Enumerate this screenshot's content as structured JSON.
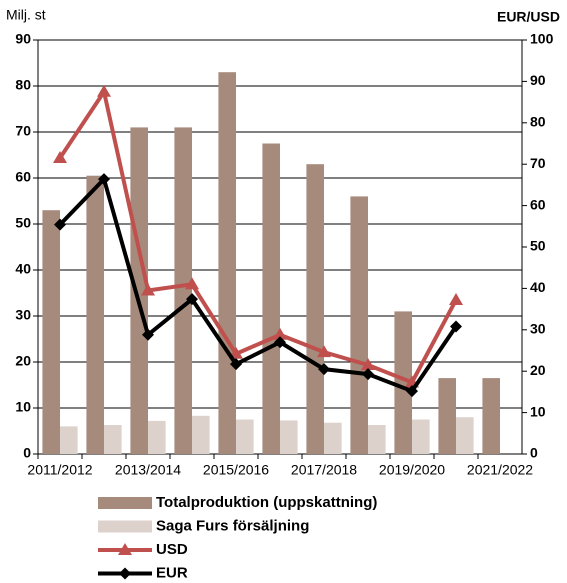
{
  "chart_data": {
    "type": "bar_line",
    "y_label": "Milj. st",
    "y2_label": "EUR/USD",
    "categories": [
      "2011/2012",
      null,
      "2013/2014",
      null,
      "2015/2016",
      null,
      "2017/2018",
      null,
      "2019/2020",
      null,
      "2021/2022"
    ],
    "series": [
      {
        "name": "Totalproduktion (uppskattning)",
        "kind": "bar",
        "color": "#a68b7d",
        "values": [
          53,
          60.5,
          71,
          71,
          83,
          67.5,
          63,
          56,
          31,
          16.5,
          16.5
        ]
      },
      {
        "name": "Saga Furs försäljning",
        "kind": "bar",
        "color": "#ddd1cc",
        "values": [
          6,
          6.3,
          7.2,
          8.3,
          7.5,
          7.3,
          6.8,
          6.3,
          7.5,
          8,
          null
        ]
      },
      {
        "name": "USD",
        "kind": "line",
        "axis": "y2",
        "marker": "triangle",
        "color": "#c0504d",
        "values": [
          71.5,
          87.5,
          39.5,
          41,
          24.2,
          28.8,
          24.6,
          21.5,
          17.3,
          37.2,
          null
        ]
      },
      {
        "name": "EUR",
        "kind": "line",
        "axis": "y2",
        "marker": "diamond",
        "color": "#000000",
        "values": [
          55.4,
          66.4,
          28.8,
          37.4,
          21.7,
          27,
          20.5,
          19.3,
          15.2,
          30.8,
          null
        ]
      }
    ],
    "ylim": [
      0,
      90
    ],
    "yticks": [
      0,
      10,
      20,
      30,
      40,
      50,
      60,
      70,
      80,
      90
    ],
    "y2lim": [
      0,
      100
    ],
    "y2ticks": [
      0,
      10,
      20,
      30,
      40,
      50,
      60,
      70,
      80,
      90,
      100
    ],
    "grid": true
  }
}
